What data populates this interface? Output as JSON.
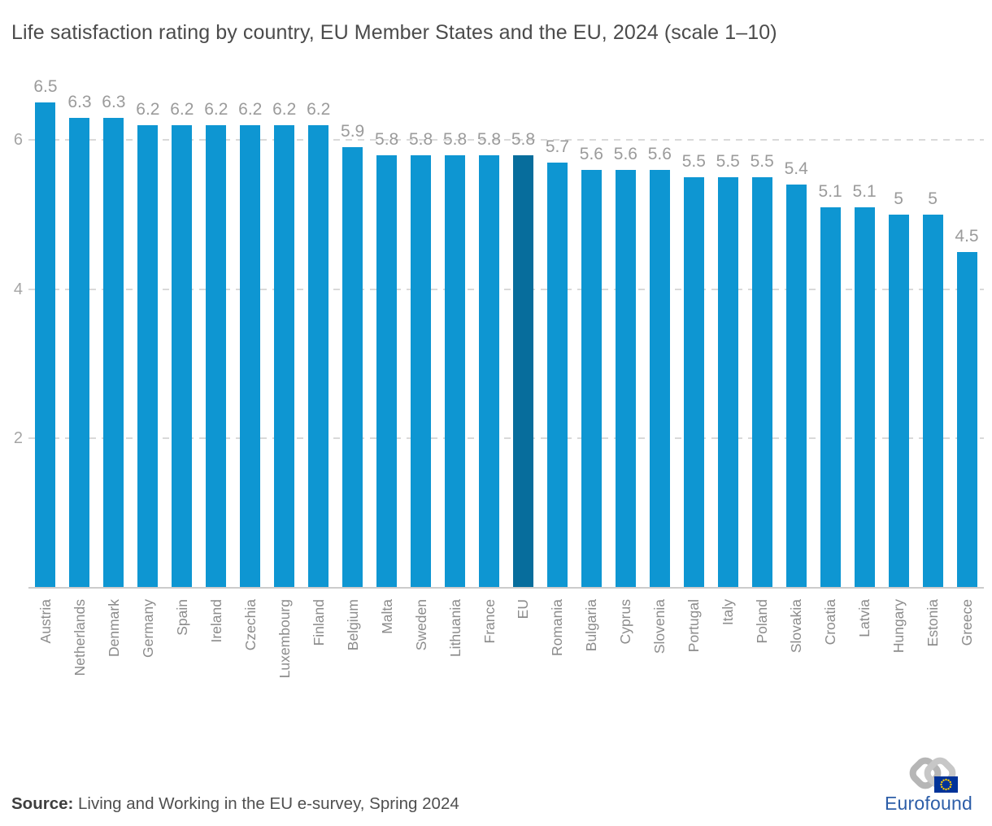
{
  "title": "Life satisfaction rating by country, EU Member States and the EU, 2024 (scale 1–10)",
  "source": {
    "label": "Source:",
    "text": " Living and Working in the EU e-survey, Spring 2024"
  },
  "logo": {
    "wordmark": "Eurofound"
  },
  "colors": {
    "bar": "#0e96d2",
    "bar_highlight": "#076d9c",
    "gridline": "#d9d9d9",
    "axis_line": "#cccccc",
    "value_label": "#9b9b9b",
    "category_label": "#8c8c8c",
    "logo_blue": "#2d5ea8",
    "eu_flag_blue": "#003399",
    "eu_flag_star": "#ffcc00"
  },
  "chart_data": {
    "type": "bar",
    "title": "Life satisfaction rating by country, EU Member States and the EU, 2024 (scale 1–10)",
    "categories": [
      "Austria",
      "Netherlands",
      "Denmark",
      "Germany",
      "Spain",
      "Ireland",
      "Czechia",
      "Luxembourg",
      "Finland",
      "Belgium",
      "Malta",
      "Sweden",
      "Lithuania",
      "France",
      "EU",
      "Romania",
      "Bulgaria",
      "Cyprus",
      "Slovenia",
      "Portugal",
      "Italy",
      "Poland",
      "Slovakia",
      "Croatia",
      "Latvia",
      "Hungary",
      "Estonia",
      "Greece"
    ],
    "values": [
      6.5,
      6.3,
      6.3,
      6.2,
      6.2,
      6.2,
      6.2,
      6.2,
      6.2,
      5.9,
      5.8,
      5.8,
      5.8,
      5.8,
      5.8,
      5.7,
      5.6,
      5.6,
      5.6,
      5.5,
      5.5,
      5.5,
      5.4,
      5.1,
      5.1,
      5,
      5,
      4.5
    ],
    "highlight_category": "EU",
    "xlabel": "",
    "ylabel": "",
    "ylim": [
      0,
      6.8
    ],
    "yticks": [
      2,
      4,
      6
    ],
    "grid": "horizontal-dashed",
    "legend": "none",
    "bar_label_position": "above"
  }
}
